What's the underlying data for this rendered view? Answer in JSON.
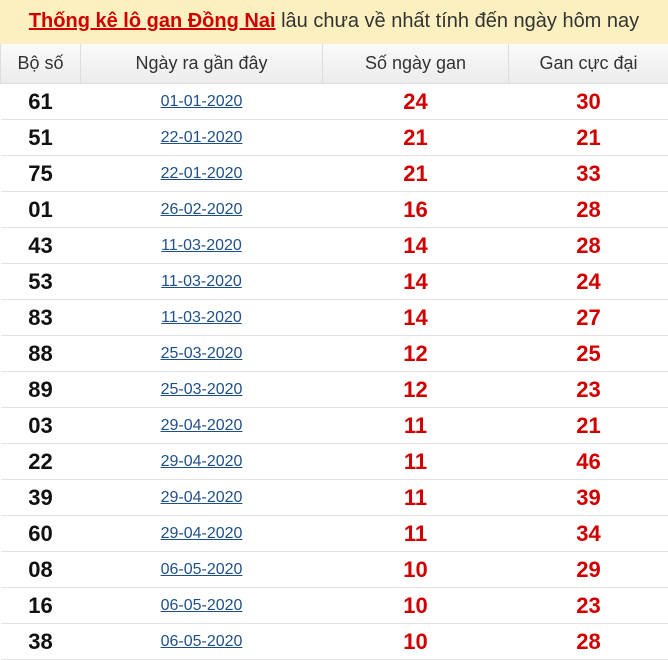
{
  "title": {
    "link": "Thống kê lô gan Đồng Nai",
    "rest": " lâu chưa về nhất tính đến ngày hôm nay"
  },
  "headers": [
    "Bộ số",
    "Ngày ra gần đây",
    "Số ngày gan",
    "Gan cực đại"
  ],
  "rows": [
    [
      "61",
      "01-01-2020",
      "24",
      "30"
    ],
    [
      "51",
      "22-01-2020",
      "21",
      "21"
    ],
    [
      "75",
      "22-01-2020",
      "21",
      "33"
    ],
    [
      "01",
      "26-02-2020",
      "16",
      "28"
    ],
    [
      "43",
      "11-03-2020",
      "14",
      "28"
    ],
    [
      "53",
      "11-03-2020",
      "14",
      "24"
    ],
    [
      "83",
      "11-03-2020",
      "14",
      "27"
    ],
    [
      "88",
      "25-03-2020",
      "12",
      "25"
    ],
    [
      "89",
      "25-03-2020",
      "12",
      "23"
    ],
    [
      "03",
      "29-04-2020",
      "11",
      "21"
    ],
    [
      "22",
      "29-04-2020",
      "11",
      "46"
    ],
    [
      "39",
      "29-04-2020",
      "11",
      "39"
    ],
    [
      "60",
      "29-04-2020",
      "11",
      "34"
    ],
    [
      "08",
      "06-05-2020",
      "10",
      "29"
    ],
    [
      "16",
      "06-05-2020",
      "10",
      "23"
    ],
    [
      "38",
      "06-05-2020",
      "10",
      "28"
    ]
  ],
  "colors": {
    "accent": "#d10000",
    "link": "#1e4f8a",
    "title_bg": "#fcefc0"
  }
}
